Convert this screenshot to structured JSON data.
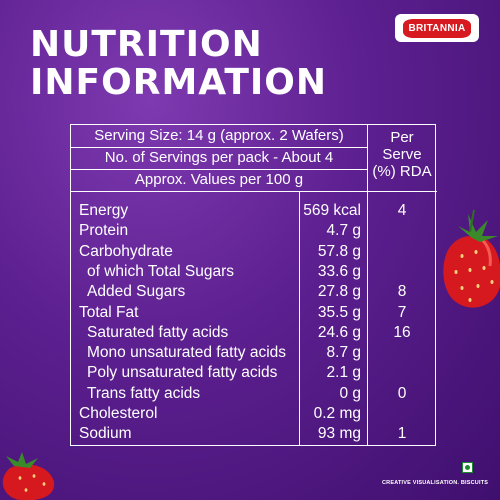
{
  "heading": {
    "line1": "NUTRITION",
    "line2": "INFORMATION"
  },
  "brand": "BRITANNIA",
  "table": {
    "serving_size": "Serving Size: 14 g (approx. 2 Wafers)",
    "servings_per_pack": "No. of Servings per pack - About 4",
    "values_per": "Approx. Values per 100 g",
    "rda_header": [
      "Per",
      "Serve",
      "(%) RDA"
    ],
    "rows": [
      {
        "label": "Energy",
        "value": "569 kcal",
        "rda": "4"
      },
      {
        "label": "Protein",
        "value": "4.7 g",
        "rda": ""
      },
      {
        "label": "Carbohydrate",
        "value": "57.8 g",
        "rda": ""
      },
      {
        "label": "of which Total Sugars",
        "value": "33.6 g",
        "rda": ""
      },
      {
        "label": "Added Sugars",
        "value": "27.8 g",
        "rda": "8"
      },
      {
        "label": "Total Fat",
        "value": "35.5 g",
        "rda": "7"
      },
      {
        "label": "Saturated fatty acids",
        "value": "24.6 g",
        "rda": "16"
      },
      {
        "label": "Mono unsaturated fatty acids",
        "value": "8.7 g",
        "rda": ""
      },
      {
        "label": "Poly unsaturated fatty acids",
        "value": "2.1 g",
        "rda": ""
      },
      {
        "label": "Trans fatty acids",
        "value": "0 g",
        "rda": "0"
      },
      {
        "label": "Cholesterol",
        "value": "0.2 mg",
        "rda": ""
      },
      {
        "label": "Sodium",
        "value": "93 mg",
        "rda": "1"
      }
    ]
  },
  "credit": "CREATIVE VISUALISATION. BISCUITS",
  "colors": {
    "background": "#5c1f8f",
    "brand_red": "#d71920",
    "veg_mark": "#1b8a2e"
  },
  "icons": [
    "strawberry-icon",
    "veg-mark-icon"
  ]
}
